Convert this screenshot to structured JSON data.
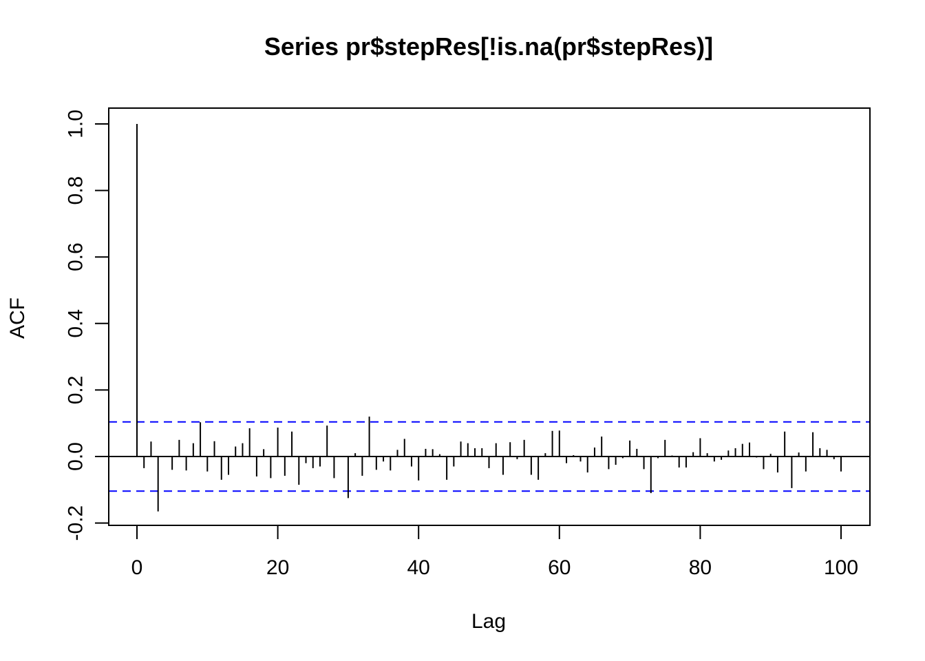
{
  "chart_data": {
    "type": "bar",
    "title": "Series  pr$stepRes[!is.na(pr$stepRes)]",
    "xlabel": "Lag",
    "ylabel": "ACF",
    "xlim": [
      -4,
      104
    ],
    "ylim": [
      -0.2,
      1.0
    ],
    "x_ticks": [
      0,
      20,
      40,
      60,
      80,
      100
    ],
    "x_tick_labels": [
      "0",
      "20",
      "40",
      "60",
      "80",
      "100"
    ],
    "y_ticks": [
      -0.2,
      0.0,
      0.2,
      0.4,
      0.6,
      0.8,
      1.0
    ],
    "y_tick_labels": [
      "-0.2",
      "0.0",
      "0.2",
      "0.4",
      "0.6",
      "0.8",
      "1.0"
    ],
    "confidence_bound": 0.104,
    "zero_line": true,
    "grid": false,
    "colors": {
      "bars": "#000000",
      "confidence": "#0000ff",
      "axis": "#000000"
    },
    "lags": [
      0,
      1,
      2,
      3,
      4,
      5,
      6,
      7,
      8,
      9,
      10,
      11,
      12,
      13,
      14,
      15,
      16,
      17,
      18,
      19,
      20,
      21,
      22,
      23,
      24,
      25,
      26,
      27,
      28,
      29,
      30,
      31,
      32,
      33,
      34,
      35,
      36,
      37,
      38,
      39,
      40,
      41,
      42,
      43,
      44,
      45,
      46,
      47,
      48,
      49,
      50,
      51,
      52,
      53,
      54,
      55,
      56,
      57,
      58,
      59,
      60,
      61,
      62,
      63,
      64,
      65,
      66,
      67,
      68,
      69,
      70,
      71,
      72,
      73,
      74,
      75,
      76,
      77,
      78,
      79,
      80,
      81,
      82,
      83,
      84,
      85,
      86,
      87,
      88,
      89,
      90,
      91,
      92,
      93,
      94,
      95,
      96,
      97,
      98,
      99,
      100
    ],
    "values": [
      1.0,
      -0.035,
      0.045,
      -0.165,
      0.002,
      -0.04,
      0.05,
      -0.042,
      0.04,
      0.103,
      -0.045,
      0.046,
      -0.07,
      -0.055,
      0.03,
      0.04,
      0.085,
      -0.06,
      0.022,
      -0.065,
      0.087,
      -0.058,
      0.075,
      -0.085,
      -0.02,
      -0.035,
      -0.03,
      0.093,
      -0.065,
      0.002,
      -0.125,
      0.01,
      -0.058,
      0.12,
      -0.04,
      -0.015,
      -0.042,
      0.02,
      0.053,
      -0.03,
      -0.072,
      0.023,
      0.022,
      0.007,
      -0.07,
      -0.03,
      0.045,
      0.04,
      0.025,
      0.025,
      -0.035,
      0.04,
      -0.055,
      0.043,
      -0.008,
      0.05,
      -0.055,
      -0.07,
      0.01,
      0.077,
      0.078,
      -0.02,
      0.004,
      -0.015,
      -0.048,
      0.027,
      0.06,
      -0.038,
      -0.025,
      -0.005,
      0.048,
      0.023,
      -0.038,
      -0.11,
      -0.005,
      0.05,
      0.003,
      -0.033,
      -0.033,
      0.013,
      0.055,
      0.01,
      -0.015,
      -0.01,
      0.018,
      0.025,
      0.038,
      0.042,
      -0.003,
      -0.038,
      0.008,
      -0.048,
      0.075,
      -0.095,
      0.012,
      -0.045,
      0.073,
      0.025,
      0.02,
      -0.008,
      -0.045
    ]
  }
}
